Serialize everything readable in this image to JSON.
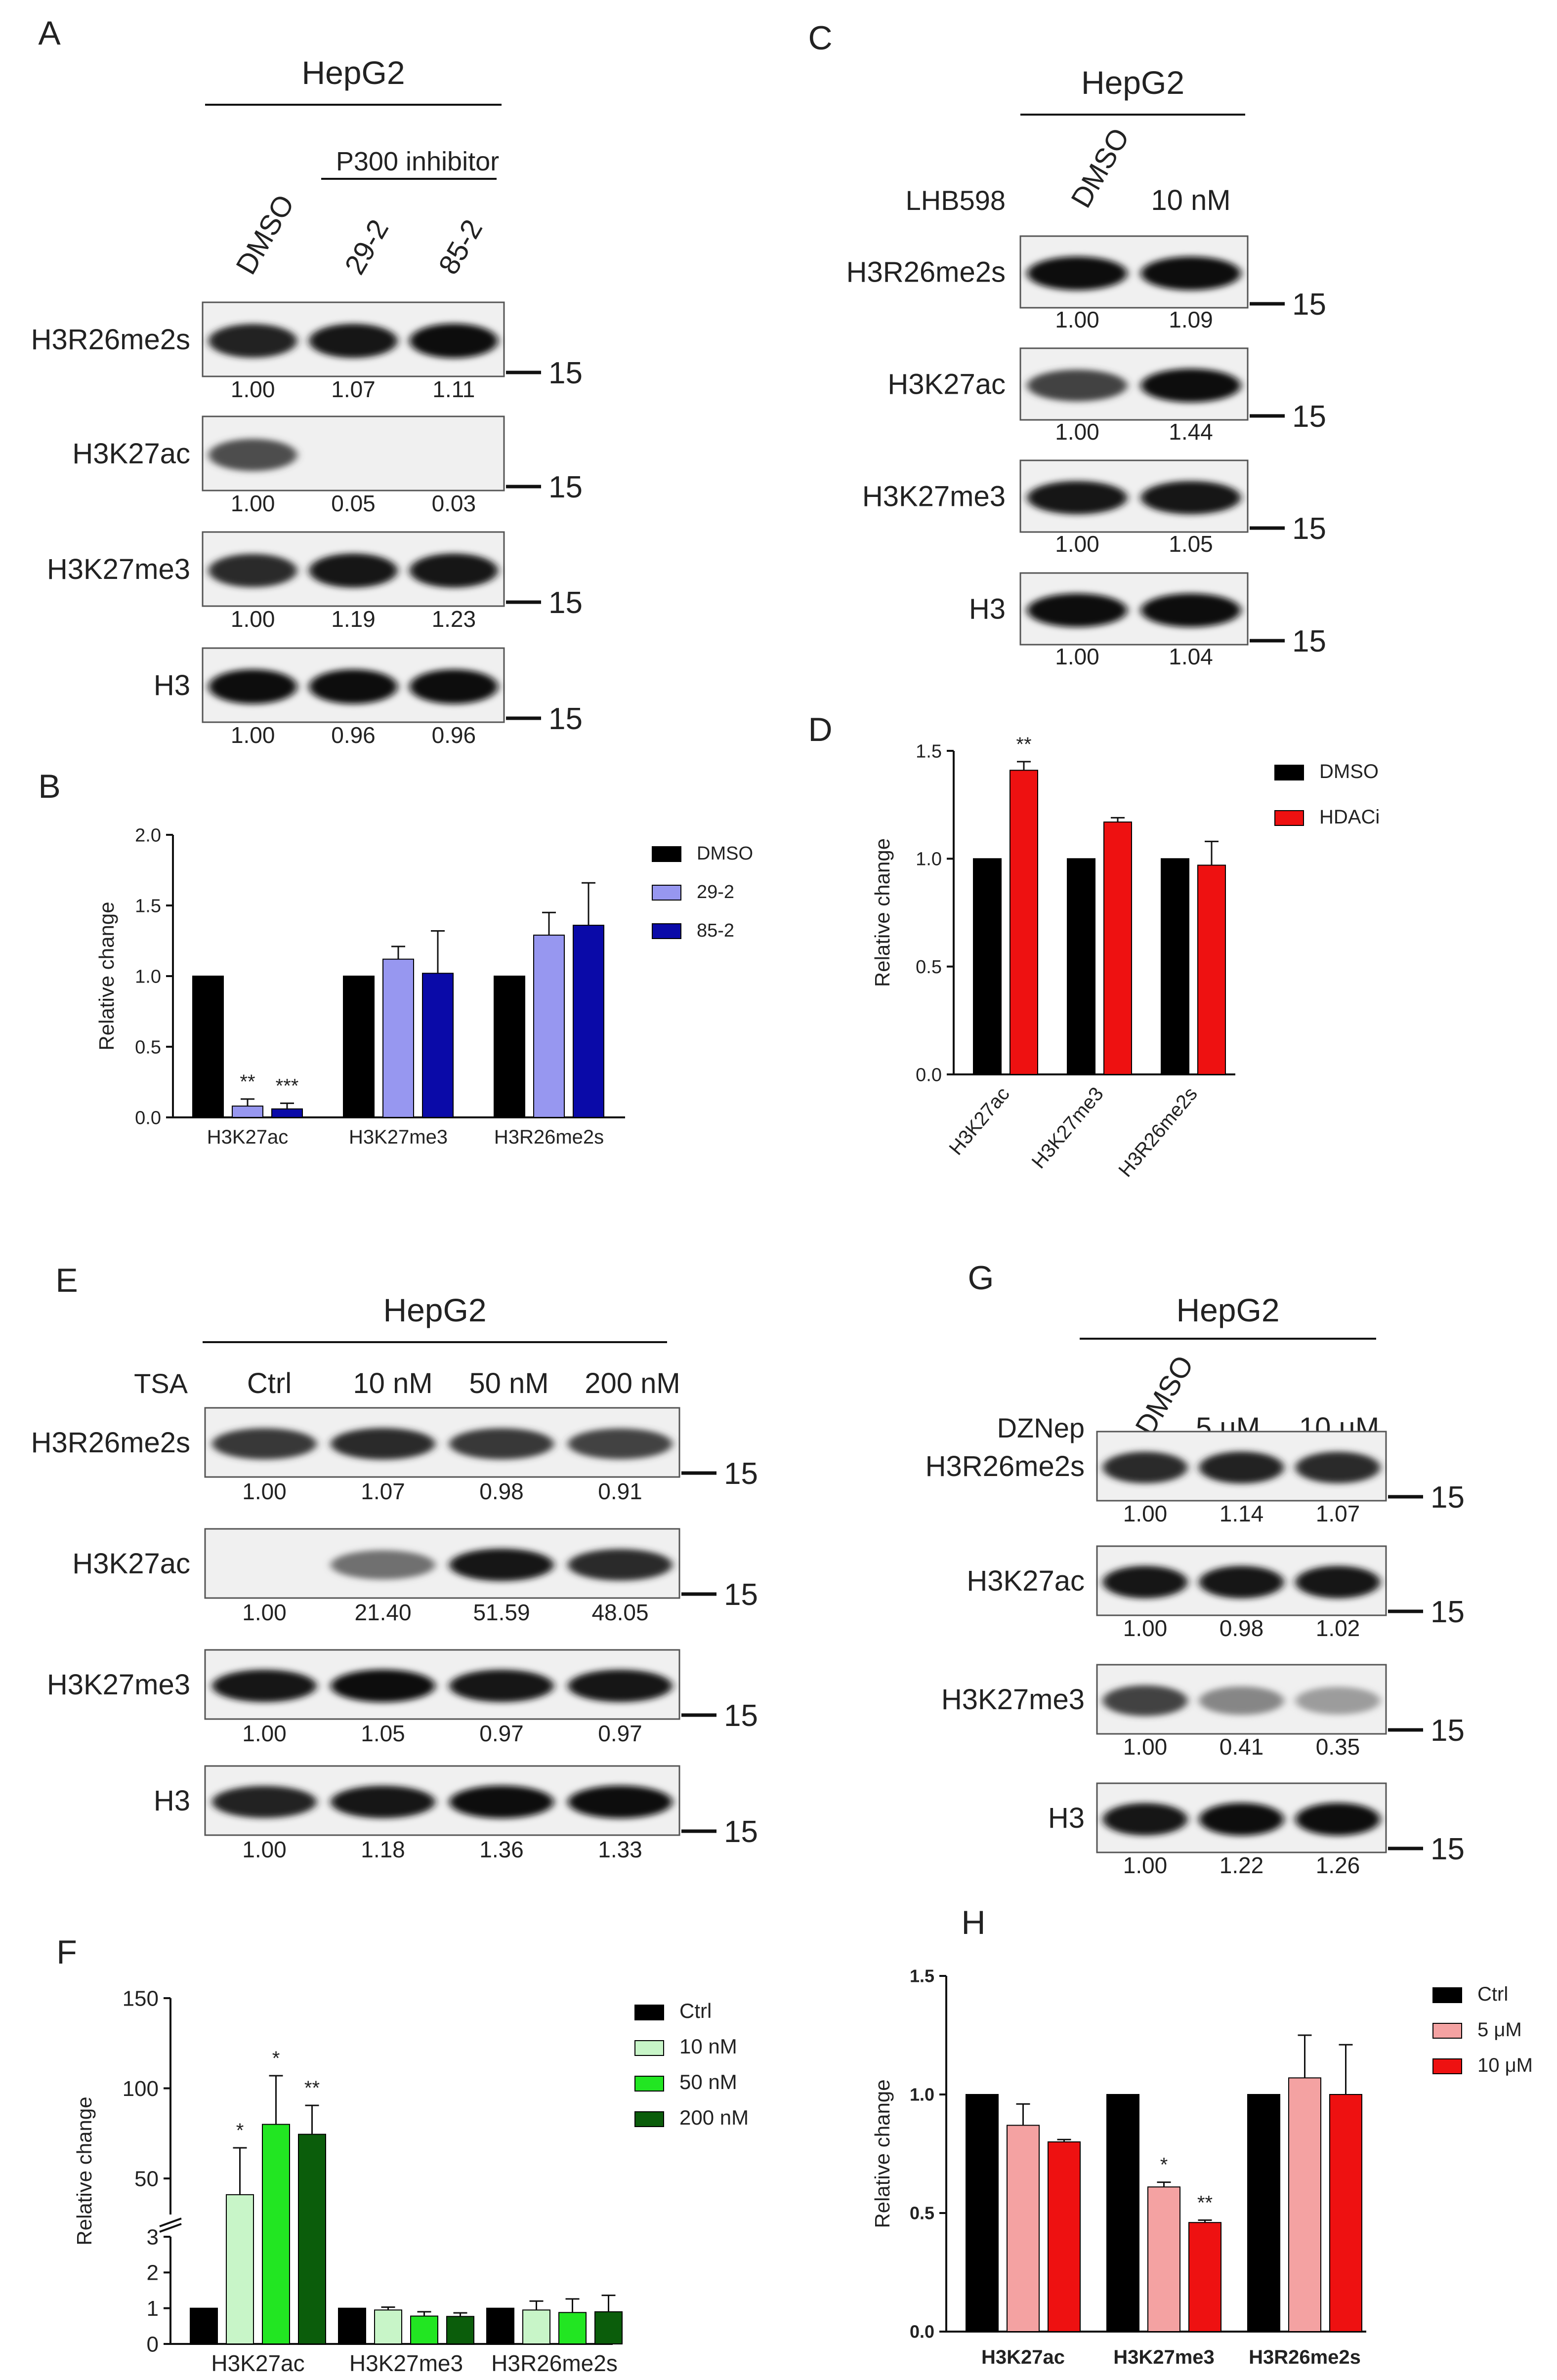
{
  "colors": {
    "black": "#000000",
    "lavender": "#9797f0",
    "navy": "#0a0aa8",
    "red": "#ee1111",
    "pink": "#f4a2a2",
    "palegreen": "#c8f5c8",
    "green": "#22e622",
    "darkgreen": "#0b5d0b"
  },
  "blots": [
    {
      "id": "A",
      "letter": "A",
      "cell": "HepG2",
      "inhibitor_label": "P300 inhibitor",
      "treatment_label": "",
      "lanes": [
        "DMSO",
        "29-2",
        "85-2"
      ],
      "rows": [
        {
          "label": "H3R26me2s",
          "values": [
            "1.00",
            "1.07",
            "1.11"
          ],
          "marker": "15",
          "signal": [
            0.9,
            0.95,
            1.0
          ]
        },
        {
          "label": "H3K27ac",
          "values": [
            "1.00",
            "0.05",
            "0.03"
          ],
          "marker": "15",
          "signal": [
            0.7,
            0.0,
            0.0
          ]
        },
        {
          "label": "H3K27me3",
          "values": [
            "1.00",
            "1.19",
            "1.23"
          ],
          "marker": "15",
          "signal": [
            0.85,
            0.95,
            0.95
          ]
        },
        {
          "label": "H3",
          "values": [
            "1.00",
            "0.96",
            "0.96"
          ],
          "marker": "15",
          "signal": [
            1.0,
            1.0,
            1.0
          ]
        }
      ]
    },
    {
      "id": "C",
      "letter": "C",
      "cell": "HepG2",
      "inhibitor_label": "",
      "treatment_label": "LHB598",
      "lanes": [
        "DMSO",
        "10 nM"
      ],
      "rows": [
        {
          "label": "H3R26me2s",
          "values": [
            "1.00",
            "1.09"
          ],
          "marker": "15",
          "signal": [
            1.0,
            1.0
          ]
        },
        {
          "label": "H3K27ac",
          "values": [
            "1.00",
            "1.44"
          ],
          "marker": "15",
          "signal": [
            0.75,
            1.0
          ]
        },
        {
          "label": "H3K27me3",
          "values": [
            "1.00",
            "1.05"
          ],
          "marker": "15",
          "signal": [
            0.95,
            0.95
          ]
        },
        {
          "label": "H3",
          "values": [
            "1.00",
            "1.04"
          ],
          "marker": "15",
          "signal": [
            1.0,
            1.0
          ]
        }
      ]
    },
    {
      "id": "E",
      "letter": "E",
      "cell": "HepG2",
      "inhibitor_label": "",
      "treatment_label": "TSA",
      "lanes": [
        "Ctrl",
        "10 nM",
        "50 nM",
        "200 nM"
      ],
      "rows": [
        {
          "label": "H3R26me2s",
          "values": [
            "1.00",
            "1.07",
            "0.98",
            "0.91"
          ],
          "marker": "15",
          "signal": [
            0.8,
            0.85,
            0.8,
            0.75
          ]
        },
        {
          "label": "H3K27ac",
          "values": [
            "1.00",
            "21.40",
            "51.59",
            "48.05"
          ],
          "marker": "15",
          "signal": [
            0.0,
            0.55,
            0.95,
            0.85
          ]
        },
        {
          "label": "H3K27me3",
          "values": [
            "1.00",
            "1.05",
            "0.97",
            "0.97"
          ],
          "marker": "15",
          "signal": [
            0.95,
            1.0,
            0.95,
            0.95
          ]
        },
        {
          "label": "H3",
          "values": [
            "1.00",
            "1.18",
            "1.36",
            "1.33"
          ],
          "marker": "15",
          "signal": [
            0.9,
            0.95,
            1.0,
            1.0
          ]
        }
      ]
    },
    {
      "id": "G",
      "letter": "G",
      "cell": "HepG2",
      "inhibitor_label": "",
      "treatment_label": "DZNep",
      "lanes": [
        "DMSO",
        "5 μM",
        "10 μM"
      ],
      "rows": [
        {
          "label": "H3R26me2s",
          "values": [
            "1.00",
            "1.14",
            "1.07"
          ],
          "marker": "15",
          "signal": [
            0.85,
            0.9,
            0.85
          ]
        },
        {
          "label": "H3K27ac",
          "values": [
            "1.00",
            "0.98",
            "1.02"
          ],
          "marker": "15",
          "signal": [
            0.95,
            0.95,
            0.95
          ]
        },
        {
          "label": "H3K27me3",
          "values": [
            "1.00",
            "0.41",
            "0.35"
          ],
          "marker": "15",
          "signal": [
            0.75,
            0.45,
            0.35
          ]
        },
        {
          "label": "H3",
          "values": [
            "1.00",
            "1.22",
            "1.26"
          ],
          "marker": "15",
          "signal": [
            0.95,
            1.0,
            1.0
          ]
        }
      ]
    }
  ],
  "chart_data": [
    {
      "id": "B",
      "letter": "B",
      "type": "bar",
      "categories": [
        "H3K27ac",
        "H3K27me3",
        "H3R26me2s"
      ],
      "ylabel": "Relative change",
      "ylim": [
        0,
        2.0
      ],
      "yticks": [
        "0.0",
        "0.5",
        "1.0",
        "1.5",
        "2.0"
      ],
      "series": [
        {
          "name": "DMSO",
          "color": "#000000",
          "values": [
            1.0,
            1.0,
            1.0
          ],
          "errors": [
            0,
            0,
            0
          ],
          "stars": [
            "",
            "",
            ""
          ]
        },
        {
          "name": "29-2",
          "color": "#9797f0",
          "values": [
            0.08,
            1.12,
            1.29
          ],
          "errors": [
            0.05,
            0.09,
            0.16
          ],
          "stars": [
            "**",
            "",
            ""
          ]
        },
        {
          "name": "85-2",
          "color": "#0a0aa8",
          "values": [
            0.06,
            1.02,
            1.36
          ],
          "errors": [
            0.04,
            0.3,
            0.3
          ],
          "stars": [
            "***",
            "",
            ""
          ]
        }
      ],
      "legend": "right",
      "bold_ticks": false,
      "rotated_categories": false
    },
    {
      "id": "D",
      "letter": "D",
      "type": "bar",
      "categories": [
        "H3K27ac",
        "H3K27me3",
        "H3R26me2s"
      ],
      "ylabel": "Relative change",
      "ylim": [
        0,
        1.5
      ],
      "yticks": [
        "0.0",
        "0.5",
        "1.0",
        "1.5"
      ],
      "series": [
        {
          "name": "DMSO",
          "color": "#000000",
          "values": [
            1.0,
            1.0,
            1.0
          ],
          "errors": [
            0,
            0,
            0
          ],
          "stars": [
            "",
            "",
            ""
          ]
        },
        {
          "name": "HDACi",
          "color": "#ee1111",
          "values": [
            1.41,
            1.17,
            0.97
          ],
          "errors": [
            0.04,
            0.02,
            0.11
          ],
          "stars": [
            "**",
            "",
            ""
          ]
        }
      ],
      "legend": "right",
      "bold_ticks": false,
      "rotated_categories": true
    },
    {
      "id": "F",
      "letter": "F",
      "type": "bar",
      "categories": [
        "H3K27ac",
        "H3K27me3",
        "H3R26me2s"
      ],
      "ylabel": "Relative change",
      "ylim": [
        0,
        150
      ],
      "axis_break": [
        3,
        30
      ],
      "yticks": [
        "0",
        "1",
        "2",
        "3",
        "50",
        "100",
        "150"
      ],
      "series": [
        {
          "name": "Ctrl",
          "color": "#000000",
          "values": [
            1.0,
            1.0,
            1.0
          ],
          "errors": [
            0,
            0,
            0
          ],
          "stars": [
            "",
            "",
            ""
          ]
        },
        {
          "name": "10 nM",
          "color": "#c8f5c8",
          "values": [
            41,
            0.95,
            0.95
          ],
          "errors": [
            26,
            0.08,
            0.25
          ],
          "stars": [
            "*",
            "",
            ""
          ]
        },
        {
          "name": "50 nM",
          "color": "#22e622",
          "values": [
            80,
            0.78,
            0.88
          ],
          "errors": [
            27,
            0.12,
            0.38
          ],
          "stars": [
            "*",
            "",
            ""
          ]
        },
        {
          "name": "200 nM",
          "color": "#0b5d0b",
          "values": [
            74.5,
            0.77,
            0.9
          ],
          "errors": [
            16,
            0.1,
            0.46
          ],
          "stars": [
            "**",
            "",
            ""
          ]
        }
      ],
      "legend": "right",
      "bold_ticks": false,
      "rotated_categories": false
    },
    {
      "id": "H",
      "letter": "H",
      "type": "bar",
      "categories": [
        "H3K27ac",
        "H3K27me3",
        "H3R26me2s"
      ],
      "ylabel": "Relative change",
      "ylim": [
        0,
        1.5
      ],
      "yticks": [
        "0.0",
        "0.5",
        "1.0",
        "1.5"
      ],
      "series": [
        {
          "name": "Ctrl",
          "color": "#000000",
          "values": [
            1.0,
            1.0,
            1.0
          ],
          "errors": [
            0,
            0,
            0
          ],
          "stars": [
            "",
            "",
            ""
          ]
        },
        {
          "name": "5 μM",
          "color": "#f4a2a2",
          "values": [
            0.87,
            0.61,
            1.07
          ],
          "errors": [
            0.09,
            0.02,
            0.18
          ],
          "stars": [
            "",
            "*",
            ""
          ]
        },
        {
          "name": "10 μM",
          "color": "#ee1111",
          "values": [
            0.8,
            0.46,
            1.0
          ],
          "errors": [
            0.01,
            0.01,
            0.21
          ],
          "stars": [
            "",
            "**",
            ""
          ]
        }
      ],
      "legend": "right",
      "bold_ticks": true,
      "rotated_categories": false
    }
  ]
}
